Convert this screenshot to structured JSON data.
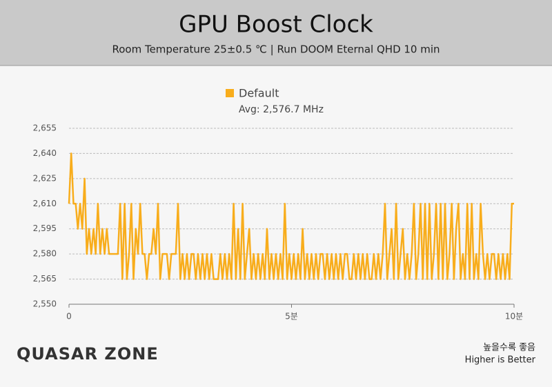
{
  "chart_data": {
    "type": "line",
    "title": "GPU Boost Clock",
    "subtitle": "Room Temperature 25±0.5 ℃  |  Run DOOM Eternal QHD 10 min",
    "annotation": "Avg: 2,576.7 MHz",
    "footer_korean": "높을수록 좋음",
    "footer": "Higher is Better",
    "logo": "QUASAR ZONE",
    "grid": true,
    "legend": "top",
    "xlim": [
      0,
      10
    ],
    "xticks": [
      0,
      {
        "value": 5,
        "label": "5분"
      },
      {
        "value": 10,
        "label": "10분"
      }
    ],
    "ylim": [
      2550,
      2655
    ],
    "yticks": [
      {
        "value": 2550,
        "label": "2,550"
      },
      {
        "value": 2565,
        "label": "2,565"
      },
      {
        "value": 2580,
        "label": "2,580"
      },
      {
        "value": 2595,
        "label": "2,595"
      },
      {
        "value": 2610,
        "label": "2,610"
      },
      {
        "value": 2625,
        "label": "2,625"
      },
      {
        "value": 2640,
        "label": "2,640"
      },
      {
        "value": 2655,
        "label": "2,655"
      }
    ],
    "x": [
      0,
      0.05,
      0.1,
      0.15,
      0.2,
      0.25,
      0.3,
      0.35,
      0.4,
      0.45,
      0.5,
      0.55,
      0.6,
      0.65,
      0.7,
      0.75,
      0.8,
      0.85,
      0.9,
      0.95,
      1,
      1.05,
      1.1,
      1.15,
      1.2,
      1.25,
      1.3,
      1.35,
      1.4,
      1.45,
      1.5,
      1.55,
      1.6,
      1.65,
      1.7,
      1.75,
      1.8,
      1.85,
      1.9,
      1.95,
      2,
      2.05,
      2.1,
      2.15,
      2.2,
      2.25,
      2.3,
      2.35,
      2.4,
      2.45,
      2.5,
      2.55,
      2.6,
      2.65,
      2.7,
      2.75,
      2.8,
      2.85,
      2.9,
      2.95,
      3,
      3.05,
      3.1,
      3.15,
      3.2,
      3.25,
      3.3,
      3.35,
      3.4,
      3.45,
      3.5,
      3.55,
      3.6,
      3.65,
      3.7,
      3.75,
      3.8,
      3.85,
      3.9,
      3.95,
      4,
      4.05,
      4.1,
      4.15,
      4.2,
      4.25,
      4.3,
      4.35,
      4.4,
      4.45,
      4.5,
      4.55,
      4.6,
      4.65,
      4.7,
      4.75,
      4.8,
      4.85,
      4.9,
      4.95,
      5,
      5.05,
      5.1,
      5.15,
      5.2,
      5.25,
      5.3,
      5.35,
      5.4,
      5.45,
      5.5,
      5.55,
      5.6,
      5.65,
      5.7,
      5.75,
      5.8,
      5.85,
      5.9,
      5.95,
      6,
      6.05,
      6.1,
      6.15,
      6.2,
      6.25,
      6.3,
      6.35,
      6.4,
      6.45,
      6.5,
      6.55,
      6.6,
      6.65,
      6.7,
      6.75,
      6.8,
      6.85,
      6.9,
      6.95,
      7,
      7.05,
      7.1,
      7.15,
      7.2,
      7.25,
      7.3,
      7.35,
      7.4,
      7.45,
      7.5,
      7.55,
      7.6,
      7.65,
      7.7,
      7.75,
      7.8,
      7.85,
      7.9,
      7.95,
      8,
      8.05,
      8.1,
      8.15,
      8.2,
      8.25,
      8.3,
      8.35,
      8.4,
      8.45,
      8.5,
      8.55,
      8.6,
      8.65,
      8.7,
      8.75,
      8.8,
      8.85,
      8.9,
      8.95,
      9,
      9.05,
      9.1,
      9.15,
      9.2,
      9.25,
      9.3,
      9.35,
      9.4,
      9.45,
      9.5,
      9.55,
      9.6,
      9.65,
      9.7,
      9.75,
      9.8,
      9.85,
      9.9,
      9.95,
      10
    ],
    "series": [
      {
        "name": "Default",
        "color": "#f8ad1c",
        "values": [
          2610,
          2640,
          2610,
          2610,
          2595,
          2610,
          2595,
          2625,
          2580,
          2595,
          2580,
          2595,
          2580,
          2610,
          2580,
          2595,
          2580,
          2595,
          2580,
          2580,
          2580,
          2580,
          2580,
          2610,
          2565,
          2610,
          2565,
          2580,
          2610,
          2565,
          2595,
          2580,
          2610,
          2580,
          2580,
          2565,
          2580,
          2580,
          2595,
          2580,
          2610,
          2565,
          2580,
          2580,
          2580,
          2565,
          2580,
          2580,
          2580,
          2610,
          2565,
          2580,
          2565,
          2580,
          2565,
          2580,
          2580,
          2565,
          2580,
          2565,
          2580,
          2565,
          2580,
          2565,
          2580,
          2565,
          2565,
          2565,
          2580,
          2565,
          2580,
          2565,
          2580,
          2565,
          2610,
          2565,
          2595,
          2565,
          2610,
          2565,
          2580,
          2595,
          2565,
          2580,
          2565,
          2580,
          2565,
          2580,
          2565,
          2595,
          2565,
          2580,
          2565,
          2580,
          2565,
          2580,
          2565,
          2610,
          2565,
          2580,
          2565,
          2580,
          2565,
          2580,
          2565,
          2595,
          2565,
          2580,
          2565,
          2580,
          2565,
          2580,
          2565,
          2580,
          2580,
          2565,
          2580,
          2565,
          2580,
          2565,
          2580,
          2565,
          2580,
          2565,
          2580,
          2580,
          2565,
          2565,
          2580,
          2565,
          2580,
          2565,
          2580,
          2565,
          2580,
          2565,
          2565,
          2580,
          2565,
          2580,
          2565,
          2580,
          2610,
          2565,
          2580,
          2595,
          2565,
          2610,
          2565,
          2580,
          2595,
          2565,
          2580,
          2565,
          2580,
          2610,
          2565,
          2580,
          2610,
          2565,
          2610,
          2565,
          2610,
          2565,
          2580,
          2610,
          2565,
          2610,
          2565,
          2610,
          2565,
          2580,
          2610,
          2565,
          2595,
          2610,
          2565,
          2580,
          2565,
          2610,
          2565,
          2610,
          2565,
          2580,
          2565,
          2610,
          2580,
          2565,
          2580,
          2565,
          2580,
          2580,
          2565,
          2580,
          2565,
          2580,
          2565,
          2580,
          2565,
          2610,
          2610
        ]
      }
    ]
  }
}
